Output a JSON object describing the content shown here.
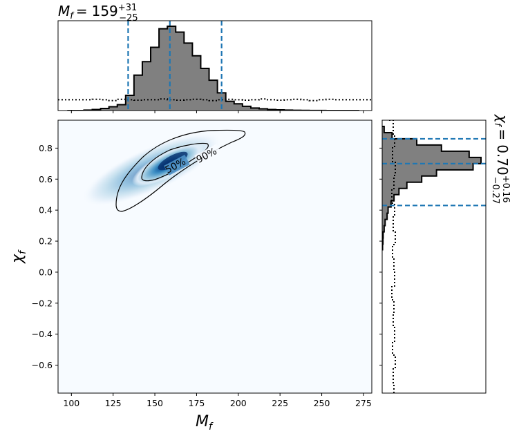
{
  "chart_data": [
    {
      "type": "histogram",
      "panel": "top-marginal",
      "title": {
        "symbol": "M",
        "sub": "f",
        "value": "159",
        "plus": "+31",
        "minus": "−25"
      },
      "x": [
        100,
        105,
        110,
        115,
        120,
        125,
        130,
        135,
        140,
        145,
        150,
        155,
        160,
        165,
        170,
        175,
        180,
        185,
        190,
        195,
        200,
        205,
        210,
        215,
        220,
        225,
        230,
        235,
        240,
        245,
        250,
        255,
        260,
        265,
        270
      ],
      "posterior": [
        0,
        0,
        0.005,
        0.012,
        0.025,
        0.045,
        0.07,
        0.18,
        0.42,
        0.58,
        0.75,
        0.97,
        1.0,
        0.93,
        0.8,
        0.65,
        0.5,
        0.36,
        0.21,
        0.11,
        0.08,
        0.05,
        0.03,
        0.02,
        0.012,
        0.008,
        0.005,
        0.003,
        0.002,
        0.001,
        0.001,
        0,
        0,
        0,
        0
      ],
      "prior": [
        0.13,
        0.13,
        0.13,
        0.135,
        0.13,
        0.12,
        0.135,
        0.13,
        0.125,
        0.13,
        0.13,
        0.14,
        0.13,
        0.125,
        0.13,
        0.135,
        0.13,
        0.12,
        0.13,
        0.135,
        0.13,
        0.125,
        0.13,
        0.14,
        0.13,
        0.125,
        0.13,
        0.135,
        0.13,
        0.12,
        0.13,
        0.135,
        0.13,
        0.13,
        0.13
      ],
      "quantiles": [
        134,
        159,
        190
      ],
      "xlim": [
        92,
        280
      ],
      "colors": {
        "fill": "#808080",
        "edge": "#000000",
        "quantile": "#1f77b4"
      }
    },
    {
      "type": "heatmap",
      "panel": "joint",
      "xlabel": {
        "symbol": "M",
        "sub": "f"
      },
      "ylabel": {
        "symbol": "χ",
        "sub": "f"
      },
      "xticks": [
        100,
        125,
        150,
        175,
        200,
        225,
        250,
        275
      ],
      "yticks": [
        -0.6,
        -0.4,
        -0.2,
        0.0,
        0.2,
        0.4,
        0.6,
        0.8
      ],
      "xlim": [
        92,
        280
      ],
      "ylim": [
        -0.78,
        0.98
      ],
      "peak": {
        "x": 159,
        "y": 0.7
      },
      "contours": [
        {
          "label": "50%",
          "level": 0.5
        },
        {
          "label": "90%",
          "level": 0.9
        }
      ],
      "colormap": "Blues"
    },
    {
      "type": "histogram",
      "panel": "right-marginal",
      "orientation": "horizontal",
      "title": {
        "symbol": "χ",
        "sub": "f",
        "value": "0.70",
        "plus": "+0.16",
        "minus": "−0.27"
      },
      "y": [
        0.92,
        0.88,
        0.84,
        0.8,
        0.76,
        0.72,
        0.68,
        0.64,
        0.6,
        0.56,
        0.52,
        0.48,
        0.44,
        0.4,
        0.36,
        0.32,
        0.28,
        0.24,
        0.2,
        0.16
      ],
      "posterior": [
        0.02,
        0.1,
        0.35,
        0.6,
        0.88,
        1.0,
        0.92,
        0.55,
        0.4,
        0.25,
        0.17,
        0.12,
        0.09,
        0.06,
        0.05,
        0.03,
        0.02,
        0.01,
        0.008,
        0.004
      ],
      "quantiles": [
        0.43,
        0.7,
        0.86
      ],
      "ylim": [
        -0.78,
        0.98
      ]
    }
  ]
}
